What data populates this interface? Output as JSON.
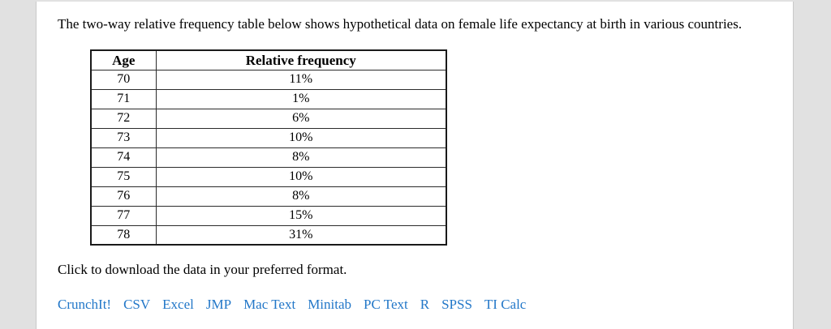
{
  "page": {
    "intro_text": "The two-way relative frequency table below shows hypothetical data on female life expectancy at birth in various countries.",
    "download_instruction": "Click to download the data in your preferred format."
  },
  "table": {
    "headers": [
      "Age",
      "Relative frequency"
    ],
    "rows": [
      {
        "age": "70",
        "relative_frequency": "11%"
      },
      {
        "age": "71",
        "relative_frequency": "1%"
      },
      {
        "age": "72",
        "relative_frequency": "6%"
      },
      {
        "age": "73",
        "relative_frequency": "10%"
      },
      {
        "age": "74",
        "relative_frequency": "8%"
      },
      {
        "age": "75",
        "relative_frequency": "10%"
      },
      {
        "age": "76",
        "relative_frequency": "8%"
      },
      {
        "age": "77",
        "relative_frequency": "15%"
      },
      {
        "age": "78",
        "relative_frequency": "31%"
      }
    ]
  },
  "download_links": [
    "CrunchIt!",
    "CSV",
    "Excel",
    "JMP",
    "Mac Text",
    "Minitab",
    "PC Text",
    "R",
    "SPSS",
    "TI Calc"
  ],
  "colors": {
    "link": "#2277c8",
    "page_background": "#ffffff",
    "frame_background": "#e1e1e1",
    "table_border": "#1a1a1a"
  }
}
